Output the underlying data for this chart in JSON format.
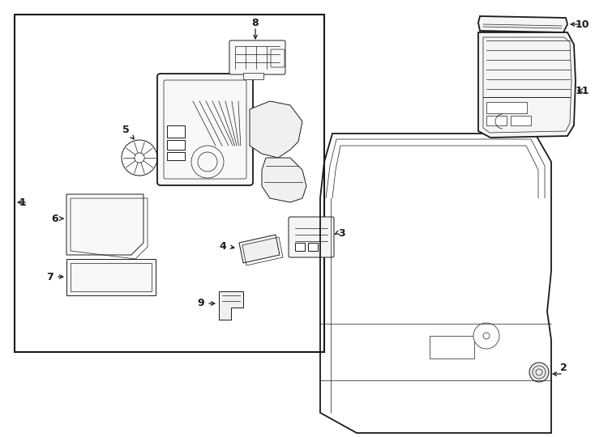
{
  "bg_color": "#ffffff",
  "line_color": "#1a1a1a",
  "fig_width": 7.34,
  "fig_height": 5.4,
  "dpi": 100,
  "lw": 1.3,
  "lw_t": 0.7,
  "lw_thin": 0.5
}
